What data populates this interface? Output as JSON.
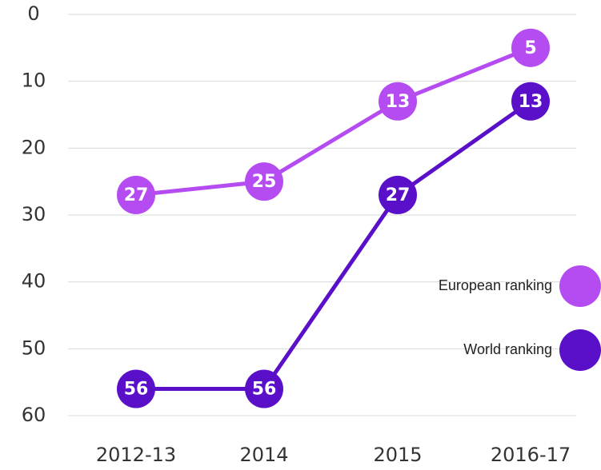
{
  "chart_data": {
    "type": "line",
    "categories": [
      "2012-13",
      "2014",
      "2015",
      "2016-17"
    ],
    "series": [
      {
        "name": "European ranking",
        "color": "#b54cf2",
        "values": [
          27,
          25,
          13,
          5
        ]
      },
      {
        "name": "World ranking",
        "color": "#5a0fc9",
        "values": [
          56,
          56,
          27,
          13
        ]
      }
    ],
    "ylim": [
      0,
      60
    ],
    "yticks": [
      0,
      10,
      20,
      30,
      40,
      50,
      60
    ],
    "y_inverted": true,
    "grid": true,
    "legend": "right"
  }
}
